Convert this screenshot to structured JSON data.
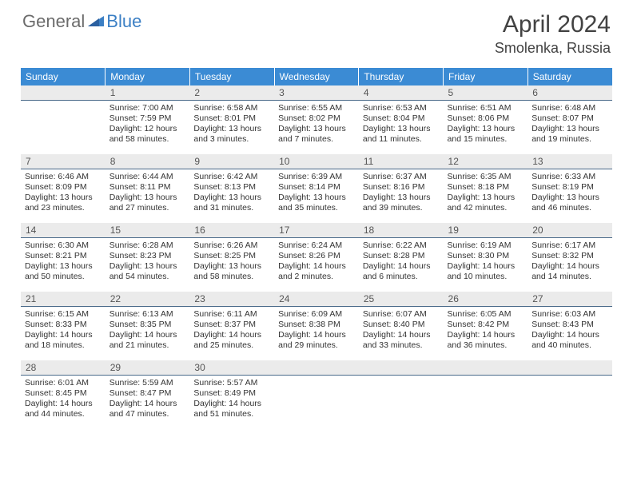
{
  "logo": {
    "general": "General",
    "blue": "Blue"
  },
  "title": "April 2024",
  "location": "Smolenka, Russia",
  "colors": {
    "header_bg": "#3b8bd4",
    "header_text": "#ffffff",
    "daynum_bg": "#ebebeb",
    "daynum_border": "#4a6a8a",
    "body_text": "#333333",
    "title_text": "#424242",
    "logo_gray": "#6b6b6b",
    "logo_blue": "#3b7fc4"
  },
  "weekdays": [
    "Sunday",
    "Monday",
    "Tuesday",
    "Wednesday",
    "Thursday",
    "Friday",
    "Saturday"
  ],
  "weeks": [
    [
      {
        "n": "",
        "lines": []
      },
      {
        "n": "1",
        "lines": [
          "Sunrise: 7:00 AM",
          "Sunset: 7:59 PM",
          "Daylight: 12 hours",
          "and 58 minutes."
        ]
      },
      {
        "n": "2",
        "lines": [
          "Sunrise: 6:58 AM",
          "Sunset: 8:01 PM",
          "Daylight: 13 hours",
          "and 3 minutes."
        ]
      },
      {
        "n": "3",
        "lines": [
          "Sunrise: 6:55 AM",
          "Sunset: 8:02 PM",
          "Daylight: 13 hours",
          "and 7 minutes."
        ]
      },
      {
        "n": "4",
        "lines": [
          "Sunrise: 6:53 AM",
          "Sunset: 8:04 PM",
          "Daylight: 13 hours",
          "and 11 minutes."
        ]
      },
      {
        "n": "5",
        "lines": [
          "Sunrise: 6:51 AM",
          "Sunset: 8:06 PM",
          "Daylight: 13 hours",
          "and 15 minutes."
        ]
      },
      {
        "n": "6",
        "lines": [
          "Sunrise: 6:48 AM",
          "Sunset: 8:07 PM",
          "Daylight: 13 hours",
          "and 19 minutes."
        ]
      }
    ],
    [
      {
        "n": "7",
        "lines": [
          "Sunrise: 6:46 AM",
          "Sunset: 8:09 PM",
          "Daylight: 13 hours",
          "and 23 minutes."
        ]
      },
      {
        "n": "8",
        "lines": [
          "Sunrise: 6:44 AM",
          "Sunset: 8:11 PM",
          "Daylight: 13 hours",
          "and 27 minutes."
        ]
      },
      {
        "n": "9",
        "lines": [
          "Sunrise: 6:42 AM",
          "Sunset: 8:13 PM",
          "Daylight: 13 hours",
          "and 31 minutes."
        ]
      },
      {
        "n": "10",
        "lines": [
          "Sunrise: 6:39 AM",
          "Sunset: 8:14 PM",
          "Daylight: 13 hours",
          "and 35 minutes."
        ]
      },
      {
        "n": "11",
        "lines": [
          "Sunrise: 6:37 AM",
          "Sunset: 8:16 PM",
          "Daylight: 13 hours",
          "and 39 minutes."
        ]
      },
      {
        "n": "12",
        "lines": [
          "Sunrise: 6:35 AM",
          "Sunset: 8:18 PM",
          "Daylight: 13 hours",
          "and 42 minutes."
        ]
      },
      {
        "n": "13",
        "lines": [
          "Sunrise: 6:33 AM",
          "Sunset: 8:19 PM",
          "Daylight: 13 hours",
          "and 46 minutes."
        ]
      }
    ],
    [
      {
        "n": "14",
        "lines": [
          "Sunrise: 6:30 AM",
          "Sunset: 8:21 PM",
          "Daylight: 13 hours",
          "and 50 minutes."
        ]
      },
      {
        "n": "15",
        "lines": [
          "Sunrise: 6:28 AM",
          "Sunset: 8:23 PM",
          "Daylight: 13 hours",
          "and 54 minutes."
        ]
      },
      {
        "n": "16",
        "lines": [
          "Sunrise: 6:26 AM",
          "Sunset: 8:25 PM",
          "Daylight: 13 hours",
          "and 58 minutes."
        ]
      },
      {
        "n": "17",
        "lines": [
          "Sunrise: 6:24 AM",
          "Sunset: 8:26 PM",
          "Daylight: 14 hours",
          "and 2 minutes."
        ]
      },
      {
        "n": "18",
        "lines": [
          "Sunrise: 6:22 AM",
          "Sunset: 8:28 PM",
          "Daylight: 14 hours",
          "and 6 minutes."
        ]
      },
      {
        "n": "19",
        "lines": [
          "Sunrise: 6:19 AM",
          "Sunset: 8:30 PM",
          "Daylight: 14 hours",
          "and 10 minutes."
        ]
      },
      {
        "n": "20",
        "lines": [
          "Sunrise: 6:17 AM",
          "Sunset: 8:32 PM",
          "Daylight: 14 hours",
          "and 14 minutes."
        ]
      }
    ],
    [
      {
        "n": "21",
        "lines": [
          "Sunrise: 6:15 AM",
          "Sunset: 8:33 PM",
          "Daylight: 14 hours",
          "and 18 minutes."
        ]
      },
      {
        "n": "22",
        "lines": [
          "Sunrise: 6:13 AM",
          "Sunset: 8:35 PM",
          "Daylight: 14 hours",
          "and 21 minutes."
        ]
      },
      {
        "n": "23",
        "lines": [
          "Sunrise: 6:11 AM",
          "Sunset: 8:37 PM",
          "Daylight: 14 hours",
          "and 25 minutes."
        ]
      },
      {
        "n": "24",
        "lines": [
          "Sunrise: 6:09 AM",
          "Sunset: 8:38 PM",
          "Daylight: 14 hours",
          "and 29 minutes."
        ]
      },
      {
        "n": "25",
        "lines": [
          "Sunrise: 6:07 AM",
          "Sunset: 8:40 PM",
          "Daylight: 14 hours",
          "and 33 minutes."
        ]
      },
      {
        "n": "26",
        "lines": [
          "Sunrise: 6:05 AM",
          "Sunset: 8:42 PM",
          "Daylight: 14 hours",
          "and 36 minutes."
        ]
      },
      {
        "n": "27",
        "lines": [
          "Sunrise: 6:03 AM",
          "Sunset: 8:43 PM",
          "Daylight: 14 hours",
          "and 40 minutes."
        ]
      }
    ],
    [
      {
        "n": "28",
        "lines": [
          "Sunrise: 6:01 AM",
          "Sunset: 8:45 PM",
          "Daylight: 14 hours",
          "and 44 minutes."
        ]
      },
      {
        "n": "29",
        "lines": [
          "Sunrise: 5:59 AM",
          "Sunset: 8:47 PM",
          "Daylight: 14 hours",
          "and 47 minutes."
        ]
      },
      {
        "n": "30",
        "lines": [
          "Sunrise: 5:57 AM",
          "Sunset: 8:49 PM",
          "Daylight: 14 hours",
          "and 51 minutes."
        ]
      },
      {
        "n": "",
        "lines": []
      },
      {
        "n": "",
        "lines": []
      },
      {
        "n": "",
        "lines": []
      },
      {
        "n": "",
        "lines": []
      }
    ]
  ]
}
